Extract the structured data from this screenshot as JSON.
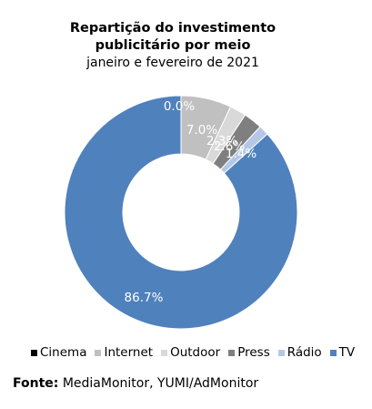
{
  "chart_data": {
    "type": "pie",
    "subtype": "donut",
    "title": "Repartição do investimento publicitário por meio",
    "title_line1": "Repartição do investimento",
    "title_line2": "publicitário por meio",
    "subtitle": "janeiro e fevereiro de 2021",
    "categories": [
      "Cinema",
      "Internet",
      "Outdoor",
      "Press",
      "Rádio",
      "TV"
    ],
    "values": [
      0.0,
      7.0,
      2.3,
      2.6,
      1.4,
      86.7
    ],
    "labels": [
      "0.0%",
      "7.0%",
      "2.3%",
      "2.6%",
      "1.4%",
      "86.7%"
    ],
    "colors": [
      "#000000",
      "#c0c0c0",
      "#d9d9d9",
      "#7f7f7f",
      "#b4c7e7",
      "#4f81bd"
    ],
    "legend_position": "bottom"
  },
  "source": {
    "label": "Fonte:",
    "text": "MediaMonitor, YUMI/AdMonitor"
  }
}
